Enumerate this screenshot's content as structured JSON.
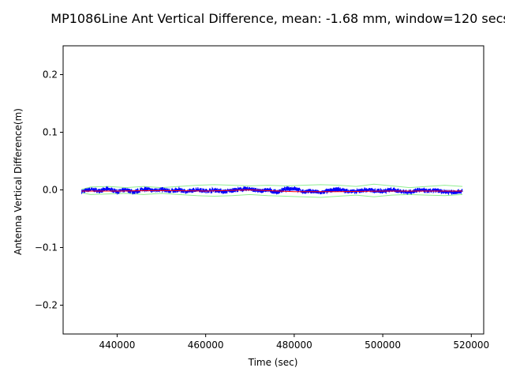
{
  "chart_data": {
    "type": "line",
    "title": "MP1086Line Ant Vertical Difference, mean: -1.68 mm, window=120 secs",
    "xlabel": "Time (sec)",
    "ylabel": "Antenna Vertical Difference(m)",
    "xlim": [
      427800,
      522800
    ],
    "ylim": [
      -0.25,
      0.25
    ],
    "x_ticks": [
      440000,
      460000,
      480000,
      500000,
      520000
    ],
    "x_tick_labels": [
      "440000",
      "460000",
      "480000",
      "500000",
      "520000"
    ],
    "y_ticks": [
      0.2,
      0.1,
      0.0,
      -0.1,
      -0.2
    ],
    "y_tick_labels": [
      "0.2",
      "0.1",
      "0.0",
      "−0.1",
      "−0.2"
    ],
    "grid": false,
    "series": [
      {
        "role": "raw difference",
        "color": "#0000ff",
        "x": [
          432000,
          434000,
          436000,
          438000,
          440000,
          442000,
          444000,
          446000,
          448000,
          450000,
          452000,
          454000,
          456000,
          458000,
          460000,
          462000,
          464000,
          466000,
          468000,
          470000,
          472000,
          474000,
          476000,
          478000,
          480000,
          482000,
          484000,
          486000,
          488000,
          490000,
          492000,
          494000,
          496000,
          498000,
          500000,
          502000,
          504000,
          506000,
          508000,
          510000,
          512000,
          514000,
          516000,
          518000
        ],
        "y": [
          -0.003,
          0.001,
          -0.002,
          0.002,
          -0.003,
          0.0,
          -0.004,
          0.002,
          -0.001,
          0.001,
          -0.002,
          0.0,
          -0.003,
          0.001,
          -0.002,
          0.0,
          -0.003,
          -0.001,
          0.001,
          0.002,
          -0.002,
          0.0,
          -0.004,
          0.001,
          0.003,
          -0.003,
          -0.002,
          -0.005,
          -0.001,
          0.001,
          -0.002,
          -0.003,
          0.0,
          -0.001,
          -0.002,
          0.0,
          -0.002,
          -0.004,
          0.0,
          -0.002,
          -0.001,
          -0.003,
          -0.004,
          -0.002
        ],
        "spread": 0.004
      },
      {
        "role": "window mean",
        "color": "#ff0000",
        "x": [
          432000,
          440000,
          450000,
          460000,
          470000,
          480000,
          490000,
          500000,
          510000,
          518000
        ],
        "y": [
          -0.002,
          -0.002,
          -0.001,
          -0.002,
          0.0,
          -0.003,
          -0.003,
          -0.002,
          -0.002,
          -0.002
        ]
      },
      {
        "role": "upper envelope",
        "color": "#90ee90",
        "x": [
          432000,
          434000,
          438000,
          442000,
          446000,
          450000,
          454000,
          458000,
          462000,
          466000,
          470000,
          474000,
          478000,
          482000,
          486000,
          490000,
          494000,
          498000,
          502000,
          506000,
          510000,
          514000,
          518000
        ],
        "y": [
          0.001,
          0.005,
          0.006,
          0.004,
          0.006,
          0.004,
          0.006,
          0.008,
          0.009,
          0.008,
          0.007,
          0.008,
          0.007,
          0.008,
          0.009,
          0.008,
          0.006,
          0.01,
          0.007,
          0.004,
          0.006,
          0.008,
          0.006
        ]
      },
      {
        "role": "lower envelope",
        "color": "#90ee90",
        "x": [
          432000,
          434000,
          438000,
          442000,
          446000,
          450000,
          454000,
          458000,
          462000,
          466000,
          470000,
          474000,
          478000,
          482000,
          486000,
          490000,
          494000,
          498000,
          502000,
          506000,
          510000,
          514000,
          518000
        ],
        "y": [
          -0.005,
          -0.008,
          -0.007,
          -0.006,
          -0.008,
          -0.006,
          -0.008,
          -0.01,
          -0.011,
          -0.01,
          -0.008,
          -0.01,
          -0.011,
          -0.012,
          -0.013,
          -0.011,
          -0.009,
          -0.012,
          -0.009,
          -0.008,
          -0.009,
          -0.01,
          -0.008
        ]
      }
    ]
  }
}
